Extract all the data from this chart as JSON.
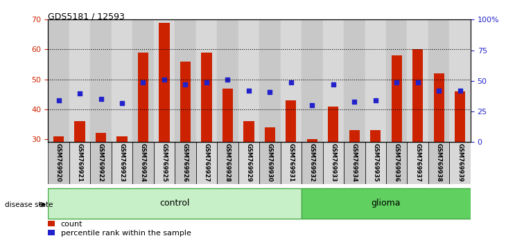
{
  "title": "GDS5181 / 12593",
  "samples": [
    "GSM769920",
    "GSM769921",
    "GSM769922",
    "GSM769923",
    "GSM769924",
    "GSM769925",
    "GSM769926",
    "GSM769927",
    "GSM769928",
    "GSM769929",
    "GSM769930",
    "GSM769931",
    "GSM769932",
    "GSM769933",
    "GSM769934",
    "GSM769935",
    "GSM769936",
    "GSM769937",
    "GSM769938",
    "GSM769939"
  ],
  "counts": [
    31,
    36,
    32,
    31,
    59,
    69,
    56,
    59,
    47,
    36,
    34,
    43,
    30,
    41,
    33,
    33,
    58,
    60,
    52,
    46
  ],
  "percentile_ranks": [
    34,
    40,
    35,
    32,
    49,
    51,
    47,
    49,
    51,
    42,
    41,
    49,
    30,
    47,
    33,
    34,
    49,
    49,
    42,
    42
  ],
  "bar_color": "#cc2200",
  "dot_color": "#2222cc",
  "control_count": 12,
  "glioma_count": 8,
  "control_label": "control",
  "glioma_label": "glioma",
  "disease_state_label": "disease state",
  "ylim_left": [
    29,
    70
  ],
  "ylim_right": [
    0,
    100
  ],
  "yticks_left": [
    30,
    40,
    50,
    60,
    70
  ],
  "yticks_right": [
    0,
    25,
    50,
    75,
    100
  ],
  "ytick_labels_right": [
    "0",
    "25",
    "50",
    "75",
    "100%"
  ],
  "grid_yticks": [
    40,
    50,
    60
  ],
  "background_color": "#ffffff",
  "col_bg_even": "#c8c8c8",
  "col_bg_odd": "#d8d8d8",
  "bar_bottom": 29,
  "legend_count": "count",
  "legend_percentile": "percentile rank within the sample",
  "control_color_light": "#c8f0c8",
  "control_color_dark": "#a0e0a0",
  "glioma_color": "#60d060"
}
